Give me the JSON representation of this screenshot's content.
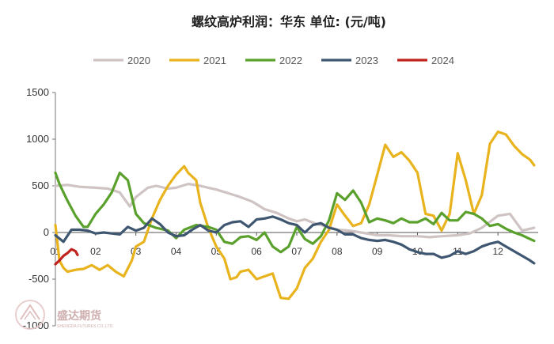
{
  "chart_data": {
    "type": "line",
    "title": "螺纹高炉利润：华东  单位: (元/吨)",
    "xlabel": "",
    "ylabel": "",
    "x_tick_labels": [
      "01",
      "02",
      "03",
      "04",
      "05",
      "06",
      "07",
      "08",
      "09",
      "10",
      "11",
      "12"
    ],
    "ylim": [
      -1000,
      1500
    ],
    "y_ticks": [
      1500,
      1000,
      500,
      0,
      -500,
      -1000
    ],
    "legend_position": "top",
    "series": [
      {
        "name": "2020",
        "color": "#cfc3c3",
        "x": [
          1.0,
          1.3,
          1.6,
          2.0,
          2.3,
          2.6,
          2.85,
          3.0,
          3.3,
          3.5,
          3.8,
          4.0,
          4.3,
          4.6,
          4.8,
          5.0,
          5.3,
          5.6,
          5.9,
          6.2,
          6.5,
          6.8,
          7.0,
          7.2,
          7.5,
          7.8,
          8.0,
          8.3,
          8.6,
          9.0,
          9.3,
          9.6,
          10.0,
          10.3,
          10.6,
          11.0,
          11.3,
          11.6,
          12.0,
          12.3,
          12.6,
          12.9
        ],
        "values": [
          500,
          510,
          490,
          480,
          470,
          430,
          280,
          380,
          480,
          500,
          470,
          480,
          520,
          500,
          480,
          460,
          420,
          380,
          330,
          250,
          210,
          150,
          120,
          140,
          90,
          60,
          30,
          20,
          0,
          -30,
          -30,
          -40,
          -40,
          -50,
          -40,
          -30,
          -10,
          50,
          180,
          200,
          20,
          50
        ]
      },
      {
        "name": "2021",
        "color": "#e8b31c",
        "x": [
          1.0,
          1.1,
          1.2,
          1.3,
          1.5,
          1.7,
          1.9,
          2.1,
          2.3,
          2.5,
          2.7,
          2.9,
          3.0,
          3.2,
          3.4,
          3.6,
          3.8,
          4.0,
          4.2,
          4.3,
          4.5,
          4.6,
          4.8,
          5.0,
          5.2,
          5.35,
          5.5,
          5.6,
          5.8,
          6.0,
          6.2,
          6.4,
          6.6,
          6.8,
          7.0,
          7.2,
          7.4,
          7.6,
          7.8,
          8.0,
          8.2,
          8.4,
          8.6,
          8.8,
          9.0,
          9.2,
          9.4,
          9.6,
          9.8,
          10.0,
          10.2,
          10.4,
          10.6,
          10.8,
          11.0,
          11.2,
          11.4,
          11.6,
          11.8,
          12.0,
          12.2,
          12.4,
          12.6,
          12.8,
          12.9
        ],
        "values": [
          80,
          -300,
          -380,
          -420,
          -400,
          -390,
          -350,
          -400,
          -350,
          -420,
          -470,
          -300,
          -150,
          -100,
          150,
          350,
          500,
          620,
          710,
          640,
          560,
          320,
          50,
          -150,
          -280,
          -500,
          -480,
          -420,
          -400,
          -500,
          -470,
          -440,
          -700,
          -710,
          -600,
          -380,
          -280,
          -100,
          30,
          300,
          180,
          70,
          100,
          300,
          620,
          940,
          810,
          860,
          770,
          640,
          200,
          180,
          20,
          200,
          850,
          560,
          200,
          400,
          950,
          1080,
          1050,
          930,
          840,
          780,
          720
        ]
      },
      {
        "name": "2022",
        "color": "#5aa02c",
        "x": [
          1.0,
          1.1,
          1.2,
          1.3,
          1.5,
          1.7,
          1.8,
          2.0,
          2.2,
          2.4,
          2.6,
          2.8,
          3.0,
          3.2,
          3.5,
          3.8,
          4.0,
          4.2,
          4.5,
          4.8,
          5.0,
          5.2,
          5.4,
          5.6,
          5.8,
          6.0,
          6.2,
          6.4,
          6.6,
          6.8,
          7.0,
          7.2,
          7.4,
          7.6,
          7.8,
          8.0,
          8.2,
          8.4,
          8.6,
          8.8,
          9.0,
          9.2,
          9.4,
          9.6,
          9.8,
          10.0,
          10.2,
          10.4,
          10.6,
          10.8,
          11.0,
          11.2,
          11.4,
          11.6,
          11.8,
          12.0,
          12.2,
          12.4,
          12.6,
          12.8,
          12.9
        ],
        "values": [
          640,
          520,
          430,
          340,
          180,
          60,
          60,
          200,
          300,
          430,
          640,
          560,
          200,
          100,
          50,
          20,
          -60,
          30,
          80,
          60,
          30,
          -100,
          -120,
          -50,
          -40,
          -80,
          0,
          -150,
          -210,
          -150,
          60,
          -70,
          -120,
          -40,
          130,
          420,
          350,
          450,
          320,
          110,
          150,
          130,
          100,
          150,
          110,
          110,
          150,
          90,
          210,
          130,
          130,
          220,
          200,
          150,
          70,
          90,
          40,
          0,
          -30,
          -70,
          -90
        ]
      },
      {
        "name": "2023",
        "color": "#3f5671",
        "x": [
          1.0,
          1.2,
          1.4,
          1.6,
          1.8,
          2.0,
          2.2,
          2.4,
          2.6,
          2.8,
          3.0,
          3.2,
          3.4,
          3.6,
          3.8,
          4.0,
          4.2,
          4.4,
          4.6,
          4.8,
          5.0,
          5.2,
          5.4,
          5.6,
          5.8,
          6.0,
          6.2,
          6.4,
          6.6,
          6.8,
          7.0,
          7.2,
          7.4,
          7.6,
          7.8,
          8.0,
          8.2,
          8.4,
          8.6,
          8.8,
          9.0,
          9.2,
          9.4,
          9.6,
          9.8,
          10.0,
          10.2,
          10.4,
          10.6,
          10.8,
          11.0,
          11.2,
          11.4,
          11.6,
          11.8,
          12.0,
          12.2,
          12.4,
          12.6,
          12.8,
          12.9
        ],
        "values": [
          -30,
          -100,
          30,
          30,
          20,
          -10,
          0,
          -10,
          -20,
          60,
          20,
          50,
          150,
          90,
          0,
          -40,
          -30,
          30,
          80,
          20,
          0,
          80,
          110,
          120,
          60,
          140,
          150,
          170,
          140,
          100,
          80,
          0,
          80,
          100,
          50,
          30,
          -20,
          -20,
          -60,
          -80,
          -90,
          -80,
          -100,
          -130,
          -180,
          -210,
          -230,
          -230,
          -270,
          -250,
          -200,
          -230,
          -200,
          -150,
          -120,
          -100,
          -150,
          -200,
          -250,
          -300,
          -330
        ]
      },
      {
        "name": "2024",
        "color": "#c0221f",
        "x": [
          1.0,
          1.1,
          1.2,
          1.3,
          1.4,
          1.5,
          1.55
        ],
        "values": [
          -340,
          -300,
          -250,
          -220,
          -180,
          -200,
          -240
        ]
      }
    ]
  },
  "watermark": {
    "name": "盛达期货",
    "sub": "SHENGDA FUTURES CO.,LTD."
  }
}
